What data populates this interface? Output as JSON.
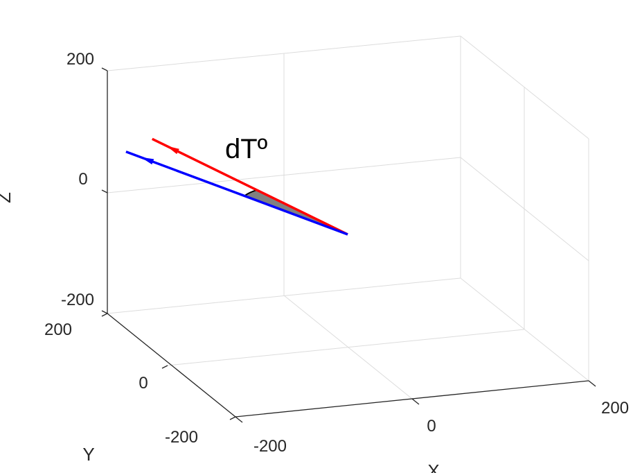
{
  "chart_data": {
    "type": "line",
    "projection": "3d",
    "title": "",
    "xlabel": "X",
    "ylabel": "Y",
    "zlabel": "Z",
    "xlim": [
      -200,
      200
    ],
    "ylim": [
      -200,
      200
    ],
    "zlim": [
      -200,
      200
    ],
    "xticks": [
      "-200",
      "0",
      "200"
    ],
    "yticks": [
      "-200",
      "0",
      "200"
    ],
    "zticks": [
      "-200",
      "0",
      "200"
    ],
    "grid": true,
    "series": [
      {
        "color": "#ff0000",
        "points": [
          [
            -225,
            10,
            195
          ],
          [
            0,
            0,
            0
          ]
        ]
      },
      {
        "color": "#0000ff",
        "points": [
          [
            -222,
            -80,
            135
          ],
          [
            0,
            0,
            0
          ]
        ]
      }
    ],
    "angle_wedge_color": "#808080",
    "annotation": "dTº"
  }
}
